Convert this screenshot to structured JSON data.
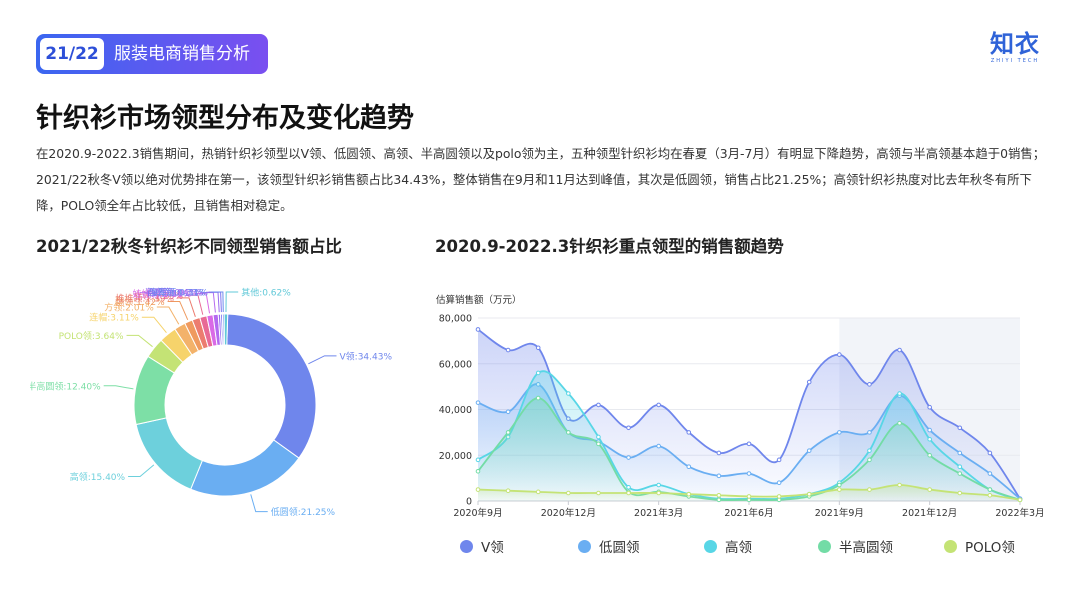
{
  "header": {
    "page_number": "21/22",
    "section_title": "服装电商销售分析"
  },
  "logo": {
    "name": "知衣",
    "sub": "ZHIYI TECH"
  },
  "title": "针织衫市场领型分布及变化趋势",
  "description": "在2020.9-2022.3销售期间，热销针织衫领型以V领、低圆领、高领、半高圆领以及polo领为主，五种领型针织衫均在春夏（3月-7月）有明显下降趋势，高领与半高领基本趋于0销售；2021/22秋冬V领以绝对优势排在第一，该领型针织衫销售额占比34.43%，整体销售在9月和11月达到峰值，其次是低圆领，销售占比21.25%；高领针织衫热度对比去年秋冬有所下降，POLO领全年占比较低，且销售相对稳定。",
  "chart_data": [
    {
      "type": "pie",
      "title": "2021/22秋冬针织衫不同领型销售额占比",
      "donut": true,
      "slices": [
        {
          "label": "V领:34.43%",
          "value": 34.43,
          "color": "#6f86ec"
        },
        {
          "label": "低圆领:21.25%",
          "value": 21.25,
          "color": "#6aaef2"
        },
        {
          "label": "高领:15.40%",
          "value": 15.4,
          "color": "#6dd0dc"
        },
        {
          "label": "半高圆领:12.40%",
          "value": 12.4,
          "color": "#7ddfa6"
        },
        {
          "label": "POLO领:3.64%",
          "value": 3.64,
          "color": "#c4e375"
        },
        {
          "label": "连帽:3.11%",
          "value": 3.11,
          "color": "#f6d36b"
        },
        {
          "label": "方领:2.01%",
          "value": 2.01,
          "color": "#f3b26a"
        },
        {
          "label": "翻领:1.42%",
          "value": 1.42,
          "color": "#ef9a5f"
        },
        {
          "label": "堆堆领:1.39%",
          "value": 1.39,
          "color": "#ec7c6f"
        },
        {
          "label": "立领:1.25%",
          "value": 1.25,
          "color": "#e86a95"
        },
        {
          "label": "娃娃领:1.11%",
          "value": 1.11,
          "color": "#d96ae6"
        },
        {
          "label": "一字领:0.91%",
          "value": 0.91,
          "color": "#b46af0"
        },
        {
          "label": "半开领:0.41%",
          "value": 0.41,
          "color": "#9a6cf0"
        },
        {
          "label": "西装领:0.33%",
          "value": 0.33,
          "color": "#7e74f0"
        },
        {
          "label": "海军领:0.31%",
          "value": 0.31,
          "color": "#6d8cf0"
        },
        {
          "label": "其他:0.62%",
          "value": 0.62,
          "color": "#62c9d8"
        }
      ]
    },
    {
      "type": "line",
      "title": "2020.9-2022.3针织衫重点领型的销售额趋势",
      "ylabel": "估算销售额（万元）",
      "ylim": [
        0,
        80000
      ],
      "yticks": [
        "0",
        "20,000",
        "40,000",
        "60,000",
        "80,000"
      ],
      "xticks": [
        "2020年9月",
        "2020年12月",
        "2021年3月",
        "2021年6月",
        "2021年9月",
        "2021年12月",
        "2022年3月"
      ],
      "x": [
        "2020-09",
        "2020-10",
        "2020-11",
        "2020-12",
        "2021-01",
        "2021-02",
        "2021-03",
        "2021-04",
        "2021-05",
        "2021-06",
        "2021-07",
        "2021-08",
        "2021-09",
        "2021-10",
        "2021-11",
        "2021-12",
        "2022-01",
        "2022-02",
        "2022-03"
      ],
      "series": [
        {
          "name": "V领",
          "color": "#6f86ec",
          "values": [
            75000,
            66000,
            67000,
            36000,
            42000,
            32000,
            42000,
            30000,
            21000,
            25000,
            18000,
            52000,
            64000,
            51000,
            66000,
            41000,
            32000,
            21000,
            1000
          ]
        },
        {
          "name": "低圆领",
          "color": "#6aaef2",
          "values": [
            43000,
            39000,
            51000,
            30000,
            26000,
            19000,
            24000,
            15000,
            11000,
            12000,
            8000,
            22000,
            30000,
            30000,
            46000,
            31000,
            21000,
            12000,
            1000
          ]
        },
        {
          "name": "高领",
          "color": "#58d6e6",
          "values": [
            18000,
            28000,
            56000,
            47000,
            28000,
            6000,
            7000,
            3000,
            1000,
            1000,
            1000,
            3000,
            8000,
            22000,
            47000,
            27000,
            15000,
            5000,
            500
          ]
        },
        {
          "name": "半高圆领",
          "color": "#73dca6",
          "values": [
            13000,
            30000,
            45000,
            30000,
            25000,
            4000,
            4000,
            2000,
            500,
            500,
            500,
            2000,
            7000,
            18000,
            34000,
            20000,
            12000,
            5000,
            500
          ]
        },
        {
          "name": "POLO领",
          "color": "#c4e375",
          "values": [
            5000,
            4500,
            4000,
            3500,
            3500,
            3500,
            3500,
            3000,
            2500,
            2000,
            2000,
            3000,
            5000,
            5000,
            7000,
            5000,
            3500,
            2500,
            500
          ]
        }
      ],
      "shaded_range": [
        "2021-09",
        "2022-03"
      ],
      "legend_position": "bottom"
    }
  ]
}
